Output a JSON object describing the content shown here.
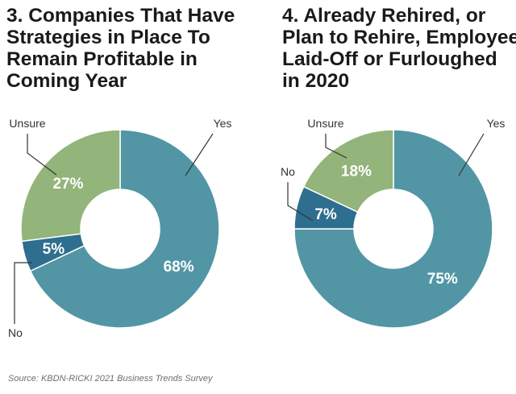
{
  "chart_data": [
    {
      "type": "pie",
      "title_lines": [
        "3. Companies That Have",
        "Strategies in Place To",
        "Remain Profitable in",
        "Coming Year"
      ],
      "slices": [
        {
          "label": "Yes",
          "value": 68,
          "value_label": "68%",
          "color": "#5296a5"
        },
        {
          "label": "No",
          "value": 5,
          "value_label": "5%",
          "color": "#2e6e8e"
        },
        {
          "label": "Unsure",
          "value": 27,
          "value_label": "27%",
          "color": "#93b47a"
        }
      ]
    },
    {
      "type": "pie",
      "title_lines": [
        "4. Already Rehired, or",
        "Plan to Rehire, Employees",
        "Laid-Off or Furloughed",
        "in 2020"
      ],
      "slices": [
        {
          "label": "Yes",
          "value": 75,
          "value_label": "75%",
          "color": "#5296a5"
        },
        {
          "label": "No",
          "value": 7,
          "value_label": "7%",
          "color": "#2e6e8e"
        },
        {
          "label": "Unsure",
          "value": 18,
          "value_label": "18%",
          "color": "#93b47a"
        }
      ]
    }
  ],
  "source": "Source: KBDN-RICKI 2021 Business Trends Survey"
}
